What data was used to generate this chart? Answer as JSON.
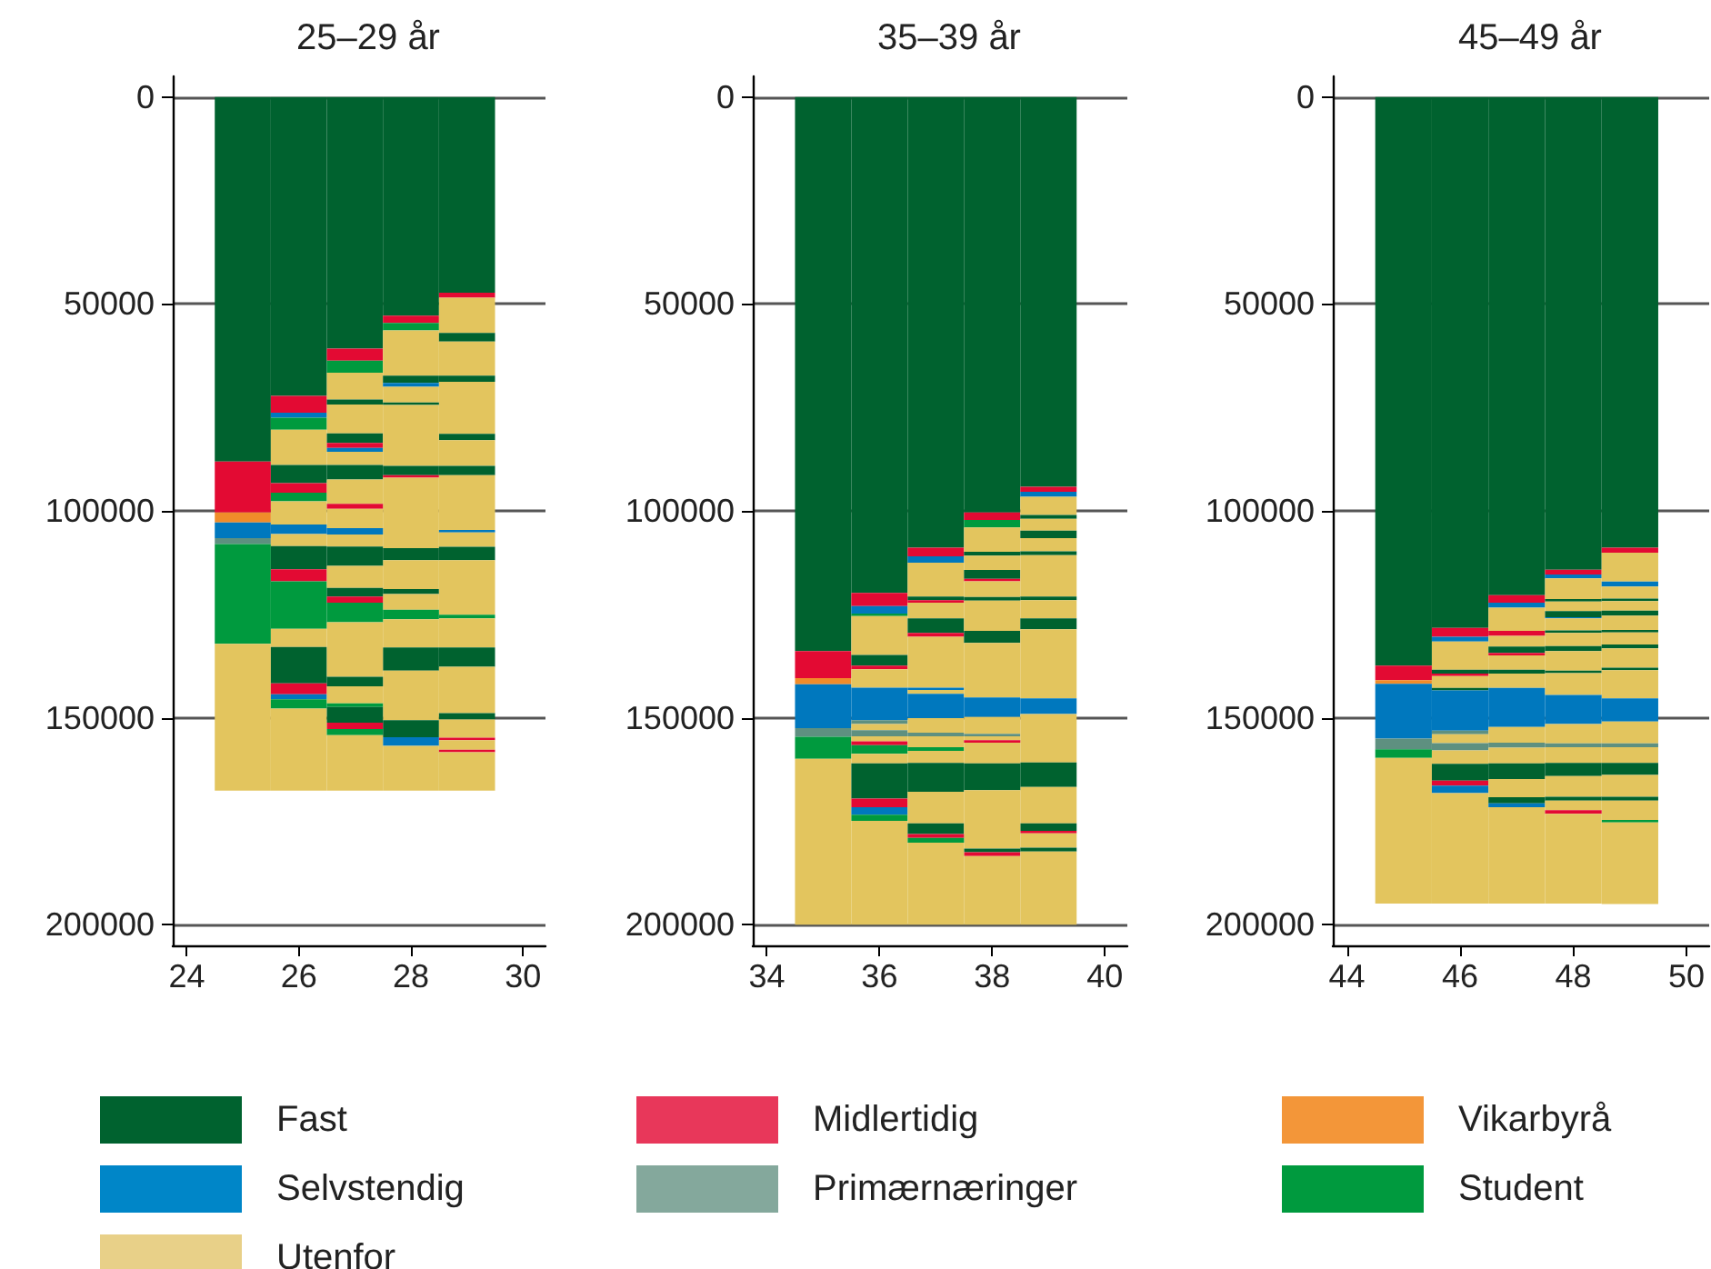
{
  "chart_data": [
    {
      "type": "bar",
      "title": "25–29 år",
      "stacked": true,
      "legend": "bottom",
      "grid": "y",
      "x": [
        25,
        26,
        27,
        28,
        29
      ],
      "xlim": [
        23.75,
        30.4
      ],
      "xticks": [
        24,
        26,
        28,
        30
      ],
      "ylim": [
        205000,
        -5000
      ],
      "yticks": [
        0,
        50000,
        100000,
        150000,
        200000
      ],
      "series": [
        {
          "colors": [
            "#00622f",
            "#00622f",
            "#00622f",
            "#00622f",
            "#00622f"
          ],
          "values": [
            88100,
            72200,
            60800,
            52800,
            47300
          ]
        },
        {
          "colors": [
            "#e30a33",
            "#e30a33",
            "#e30a33",
            "#e30a33",
            "#e30a33"
          ],
          "values": [
            12300,
            4100,
            2900,
            1800,
            1200
          ]
        },
        {
          "colors": [
            "#f08c2a",
            "#0078be",
            "#009a3e",
            "#009a3e",
            "#e3c55e"
          ],
          "values": [
            2400,
            1200,
            2900,
            1800,
            8500
          ]
        },
        {
          "colors": [
            "#0078be",
            "#009a3e",
            "#e3c55e",
            "#e3c55e",
            "#00622f"
          ],
          "values": [
            3800,
            2900,
            6500,
            10900,
            2100
          ]
        },
        {
          "colors": [
            "#5e9080",
            "#e3c55e",
            "#00622f",
            "#00622f",
            "#e3c55e"
          ],
          "values": [
            1400,
            8500,
            1200,
            1800,
            8200
          ]
        },
        {
          "colors": [
            "#009a3e",
            "#00622f",
            "#e3c55e",
            "#0078be",
            "#00622f"
          ],
          "values": [
            24100,
            4400,
            7000,
            900,
            1500
          ]
        },
        {
          "colors": [
            "#e3c55e",
            "#e30a33",
            "#00622f",
            "#e3c55e",
            "#e3c55e"
          ],
          "values": [
            35500,
            2300,
            2300,
            3800,
            12600
          ]
        },
        {
          "colors": [
            null,
            "#009a3e",
            "#e30a33",
            "#00622f",
            "#00622f"
          ],
          "values": [
            null,
            2100,
            1200,
            600,
            1500
          ]
        },
        {
          "colors": [
            null,
            "#e3c55e",
            "#0078be",
            "#e3c55e",
            "#e3c55e"
          ],
          "values": [
            null,
            5600,
            900,
            14700,
            6200
          ]
        },
        {
          "colors": [
            null,
            "#0078be",
            "#e3c55e",
            "#00622f",
            "#00622f"
          ],
          "values": [
            null,
            2300,
            3200,
            2300,
            2300
          ]
        },
        {
          "colors": [
            null,
            "#e3c55e",
            "#00622f",
            "#e30a33",
            "#e3c55e"
          ],
          "values": [
            null,
            2900,
            3500,
            600,
            13200
          ]
        },
        {
          "colors": [
            null,
            "#00622f",
            "#e3c55e",
            "#e3c55e",
            "#0078be"
          ],
          "values": [
            null,
            5600,
            5900,
            17000,
            600
          ]
        },
        {
          "colors": [
            null,
            "#e30a33",
            "#e30a33",
            "#00622f",
            "#e3c55e"
          ],
          "values": [
            null,
            2900,
            1200,
            2900,
            3500
          ]
        },
        {
          "colors": [
            null,
            "#009a3e",
            "#e3c55e",
            "#e3c55e",
            "#00622f"
          ],
          "values": [
            null,
            11500,
            4700,
            7000,
            3200
          ]
        },
        {
          "colors": [
            null,
            "#e3c55e",
            "#0078be",
            "#00622f",
            "#e3c55e"
          ],
          "values": [
            null,
            4400,
            1500,
            1200,
            13200
          ]
        },
        {
          "colors": [
            null,
            "#00622f",
            "#e3c55e",
            "#e3c55e",
            "#009a3e"
          ],
          "values": [
            null,
            8800,
            2900,
            3800,
            900
          ]
        },
        {
          "colors": [
            null,
            "#e30a33",
            "#00622f",
            "#009a3e",
            "#e3c55e"
          ],
          "values": [
            null,
            2600,
            4700,
            2300,
            7000
          ]
        },
        {
          "colors": [
            null,
            "#0078be",
            "#e3c55e",
            "#e3c55e",
            "#00622f"
          ],
          "values": [
            null,
            1200,
            5300,
            6800,
            4700
          ]
        },
        {
          "colors": [
            null,
            "#009a3e",
            "#00622f",
            "#00622f",
            "#e3c55e"
          ],
          "values": [
            null,
            2300,
            2100,
            5600,
            11200
          ]
        },
        {
          "colors": [
            null,
            "#e3c55e",
            "#e30a33",
            "#e3c55e",
            "#00622f"
          ],
          "values": [
            null,
            19800,
            1500,
            12000,
            1500
          ]
        },
        {
          "colors": [
            null,
            null,
            "#009a3e",
            "#00622f",
            "#e3c55e"
          ],
          "values": [
            null,
            null,
            4700,
            4100,
            4400
          ]
        },
        {
          "colors": [
            null,
            null,
            "#e3c55e",
            "#0078be",
            "#e30a33"
          ],
          "values": [
            null,
            null,
            13200,
            2100,
            600
          ]
        },
        {
          "colors": [
            null,
            null,
            "#00622f",
            "#e3c55e",
            "#e3c55e"
          ],
          "values": [
            null,
            null,
            2300,
            10800,
            2300
          ]
        },
        {
          "colors": [
            null,
            null,
            "#e3c55e",
            null,
            "#e30a33"
          ],
          "values": [
            null,
            null,
            4100,
            null,
            600
          ]
        },
        {
          "colors": [
            null,
            null,
            "#009a3e",
            null,
            "#e3c55e"
          ],
          "values": [
            null,
            null,
            900,
            null,
            9300
          ]
        },
        {
          "colors": [
            null,
            null,
            "#00622f",
            null,
            null
          ],
          "values": [
            null,
            null,
            3800,
            null,
            null
          ]
        },
        {
          "colors": [
            null,
            null,
            "#e30a33",
            null,
            null
          ],
          "values": [
            null,
            null,
            1500,
            null,
            null
          ]
        },
        {
          "colors": [
            null,
            null,
            "#009a3e",
            null,
            null
          ],
          "values": [
            null,
            null,
            1500,
            null,
            null
          ]
        },
        {
          "colors": [
            null,
            null,
            "#e3c55e",
            null,
            null
          ],
          "values": [
            null,
            null,
            13400,
            null,
            null
          ]
        },
        {
          "name": "Fast",
          "color": "#00622f",
          "values": [
            null,
            null,
            null,
            null,
            null
          ]
        },
        {
          "name": "Midlertidig",
          "color": "#e8375a",
          "values": [
            null,
            null,
            null,
            null,
            null
          ]
        },
        {
          "name": "Vikarbyrå",
          "color": "#f39639",
          "values": [
            null,
            null,
            null,
            null,
            null
          ]
        },
        {
          "name": "Selvstendig",
          "color": "#0086c8",
          "values": [
            null,
            null,
            null,
            null,
            null
          ]
        },
        {
          "name": "Primærnæringer",
          "color": "#84a89c",
          "values": [
            null,
            null,
            null,
            null,
            null
          ]
        },
        {
          "name": "Student",
          "color": "#009a3e",
          "values": [
            null,
            null,
            null,
            null,
            null
          ]
        },
        {
          "name": "Utenfor",
          "color": "#e8d088",
          "values": [
            null,
            null,
            null,
            null,
            null
          ]
        }
      ]
    },
    {
      "type": "bar",
      "title": "35–39 år",
      "stacked": true,
      "grid": "y",
      "x": [
        35,
        36,
        37,
        38,
        39
      ],
      "xlim": [
        33.75,
        40.4
      ],
      "xticks": [
        34,
        36,
        38,
        40
      ],
      "ylim": [
        205000,
        -5000
      ],
      "yticks": [
        0,
        50000,
        100000,
        150000,
        200000
      ],
      "series": [
        {
          "colors": [
            "#00622f",
            "#00622f",
            "#00622f",
            "#00622f",
            "#00622f"
          ],
          "values": [
            133900,
            119800,
            108900,
            100400,
            94200
          ]
        },
        {
          "colors": [
            "#e30a33",
            "#e30a33",
            "#e30a33",
            "#e30a33",
            "#e30a33"
          ],
          "values": [
            6500,
            3200,
            2100,
            1800,
            1200
          ]
        },
        {
          "colors": [
            "#f08c2a",
            "#0078be",
            "#0078be",
            "#009a3e",
            "#0078be"
          ],
          "values": [
            1500,
            1800,
            1500,
            1800,
            1200
          ]
        },
        {
          "colors": [
            "#0078be",
            "#009a3e",
            "#e3c55e",
            "#e3c55e",
            "#e3c55e"
          ],
          "values": [
            10600,
            600,
            8200,
            5900,
            4400
          ]
        },
        {
          "colors": [
            "#5e9080",
            "#e3c55e",
            "#00622f",
            "#00622f",
            "#00622f"
          ],
          "values": [
            2100,
            9400,
            900,
            900,
            900
          ]
        },
        {
          "colors": [
            "#009a3e",
            "#00622f",
            "#e30a33",
            "#e3c55e",
            "#e3c55e"
          ],
          "values": [
            5300,
            2600,
            600,
            3500,
            2900
          ]
        },
        {
          "colors": [
            "#e3c55e",
            "#e30a33",
            "#e3c55e",
            "#00622f",
            "#00622f"
          ],
          "values": [
            40100,
            900,
            3800,
            2100,
            1800
          ]
        },
        {
          "colors": [
            null,
            "#e3c55e",
            "#00622f",
            "#e30a33",
            "#e3c55e"
          ],
          "values": [
            null,
            4400,
            3500,
            600,
            3200
          ]
        },
        {
          "colors": [
            null,
            "#0078be",
            "#e30a33",
            "#e3c55e",
            "#00622f"
          ],
          "values": [
            null,
            7900,
            900,
            3800,
            900
          ]
        },
        {
          "colors": [
            null,
            "#5e9080",
            "#e3c55e",
            "#00622f",
            "#e3c55e"
          ],
          "values": [
            null,
            900,
            12300,
            900,
            10000
          ]
        },
        {
          "colors": [
            null,
            "#e3c55e",
            "#0078be",
            "#e3c55e",
            "#00622f"
          ],
          "values": [
            null,
            1500,
            600,
            7300,
            900
          ]
        },
        {
          "colors": [
            null,
            "#5e9080",
            "#e3c55e",
            "#00622f",
            "#e3c55e"
          ],
          "values": [
            null,
            1500,
            900,
            2900,
            4400
          ]
        },
        {
          "colors": [
            null,
            "#e3c55e",
            "#0078be",
            "#e3c55e",
            "#00622f"
          ],
          "values": [
            null,
            1200,
            5900,
            13200,
            2600
          ]
        },
        {
          "colors": [
            null,
            "#e30a33",
            "#e3c55e",
            "#0078be",
            "#e3c55e"
          ],
          "values": [
            null,
            900,
            3500,
            4700,
            16700
          ]
        },
        {
          "colors": [
            null,
            "#009a3e",
            "#5e9080",
            "#e3c55e",
            "#0078be"
          ],
          "values": [
            null,
            2100,
            900,
            4100,
            3800
          ]
        },
        {
          "colors": [
            null,
            "#e3c55e",
            "#e3c55e",
            "#5e9080",
            "#e3c55e"
          ],
          "values": [
            null,
            2300,
            2600,
            600,
            11700
          ]
        },
        {
          "colors": [
            null,
            "#00622f",
            "#009a3e",
            "#e3c55e",
            "#00622f"
          ],
          "values": [
            null,
            8500,
            900,
            900,
            5900
          ]
        },
        {
          "colors": [
            null,
            "#e30a33",
            "#e3c55e",
            "#e30a33",
            "#e3c55e"
          ],
          "values": [
            null,
            2100,
            2900,
            600,
            8800
          ]
        },
        {
          "colors": [
            null,
            "#0078be",
            "#00622f",
            "#e3c55e",
            "#00622f"
          ],
          "values": [
            null,
            1800,
            7000,
            5000,
            1800
          ]
        },
        {
          "colors": [
            null,
            "#009a3e",
            "#e3c55e",
            "#00622f",
            "#e30a33"
          ],
          "values": [
            null,
            1500,
            7600,
            6500,
            600
          ]
        },
        {
          "colors": [
            null,
            "#e3c55e",
            "#00622f",
            "#e3c55e",
            "#e3c55e"
          ],
          "values": [
            null,
            25100,
            2600,
            14100,
            3500
          ]
        },
        {
          "colors": [
            null,
            null,
            "#e30a33",
            "#00622f",
            "#00622f"
          ],
          "values": [
            null,
            null,
            900,
            900,
            900
          ]
        },
        {
          "colors": [
            null,
            null,
            "#009a3e",
            "#e30a33",
            "#e3c55e"
          ],
          "values": [
            null,
            null,
            1200,
            900,
            17700
          ]
        },
        {
          "colors": [
            null,
            null,
            "#e3c55e",
            "#e3c55e",
            null
          ],
          "values": [
            null,
            null,
            19800,
            16600,
            null
          ]
        }
      ]
    },
    {
      "type": "bar",
      "title": "45–49 år",
      "stacked": true,
      "grid": "y",
      "x": [
        45,
        46,
        47,
        48,
        49
      ],
      "xlim": [
        43.75,
        50.4
      ],
      "xticks": [
        44,
        46,
        48,
        50
      ],
      "ylim": [
        205000,
        -5000
      ],
      "yticks": [
        0,
        50000,
        100000,
        150000,
        200000
      ],
      "series": [
        {
          "colors": [
            "#00622f",
            "#00622f",
            "#00622f",
            "#00622f",
            "#00622f"
          ],
          "values": [
            137400,
            128300,
            120400,
            114200,
            108900
          ]
        },
        {
          "colors": [
            "#e30a33",
            "#e30a33",
            "#e30a33",
            "#e30a33",
            "#e30a33"
          ],
          "values": [
            3500,
            2100,
            1800,
            1200,
            1200
          ]
        },
        {
          "colors": [
            "#f08c2a",
            "#0078be",
            "#0078be",
            "#0078be",
            "#e3c55e"
          ],
          "values": [
            900,
            1200,
            1200,
            900,
            7000
          ]
        },
        {
          "colors": [
            "#0078be",
            "#e3c55e",
            "#e3c55e",
            "#e3c55e",
            "#0078be"
          ],
          "values": [
            13200,
            6800,
            5600,
            5000,
            1200
          ]
        },
        {
          "colors": [
            "#5e9080",
            "#00622f",
            "#e30a33",
            "#00622f",
            "#e3c55e"
          ],
          "values": [
            2600,
            900,
            1200,
            600,
            2900
          ]
        },
        {
          "colors": [
            "#009a3e",
            "#e30a33",
            "#e3c55e",
            "#e3c55e",
            "#00622f"
          ],
          "values": [
            2100,
            600,
            2600,
            2300,
            600
          ]
        },
        {
          "colors": [
            "#e3c55e",
            "#e3c55e",
            "#00622f",
            "#00622f",
            "#e3c55e"
          ],
          "values": [
            35200,
            2900,
            1500,
            1500,
            2300
          ]
        },
        {
          "colors": [
            null,
            "#00622f",
            "#e30a33",
            "#0078be",
            "#00622f"
          ],
          "values": [
            null,
            600,
            600,
            300,
            1200
          ]
        },
        {
          "colors": [
            null,
            "#0078be",
            "#e3c55e",
            "#e3c55e",
            "#e3c55e"
          ],
          "values": [
            null,
            9700,
            3500,
            2900,
            3500
          ]
        },
        {
          "colors": [
            null,
            "#5e9080",
            "#00622f",
            "#00622f",
            "#00622f"
          ],
          "values": [
            null,
            900,
            900,
            600,
            600
          ]
        },
        {
          "colors": [
            null,
            "#e3c55e",
            "#e3c55e",
            "#e3c55e",
            "#e3c55e"
          ],
          "values": [
            null,
            2100,
            3500,
            3200,
            2900
          ]
        },
        {
          "colors": [
            null,
            "#5e9080",
            "#0078be",
            "#00622f",
            "#00622f"
          ],
          "values": [
            null,
            1800,
            9400,
            1200,
            900
          ]
        },
        {
          "colors": [
            null,
            "#e3c55e",
            "#e3c55e",
            "#e3c55e",
            "#e3c55e"
          ],
          "values": [
            null,
            3200,
            3800,
            4700,
            4700
          ]
        },
        {
          "colors": [
            null,
            "#00622f",
            "#5e9080",
            "#00622f",
            "#00622f"
          ],
          "values": [
            null,
            4100,
            1200,
            600,
            600
          ]
        },
        {
          "colors": [
            null,
            "#e30a33",
            "#e3c55e",
            "#e3c55e",
            "#e3c55e"
          ],
          "values": [
            null,
            1200,
            3800,
            5300,
            6800
          ]
        },
        {
          "colors": [
            null,
            "#0078be",
            "#00622f",
            "#0078be",
            "#0078be"
          ],
          "values": [
            null,
            1800,
            3800,
            7000,
            5600
          ]
        },
        {
          "colors": [
            null,
            "#e3c55e",
            "#e3c55e",
            "#e3c55e",
            "#e3c55e"
          ],
          "values": [
            null,
            26700,
            4400,
            4700,
            5300
          ]
        },
        {
          "colors": [
            null,
            null,
            "#00622f",
            "#5e9080",
            "#5e9080"
          ],
          "values": [
            null,
            null,
            1500,
            900,
            900
          ]
        },
        {
          "colors": [
            null,
            null,
            "#0078be",
            "#e3c55e",
            "#e3c55e"
          ],
          "values": [
            null,
            null,
            900,
            3800,
            3800
          ]
        },
        {
          "colors": [
            null,
            null,
            "#e3c55e",
            "#00622f",
            "#00622f"
          ],
          "values": [
            null,
            null,
            23300,
            3200,
            2900
          ]
        },
        {
          "colors": [
            null,
            null,
            null,
            "#e3c55e",
            "#e3c55e"
          ],
          "values": [
            null,
            null,
            null,
            5000,
            5300
          ]
        },
        {
          "colors": [
            null,
            null,
            null,
            "#00622f",
            "#00622f"
          ],
          "values": [
            null,
            null,
            null,
            900,
            900
          ]
        },
        {
          "colors": [
            null,
            null,
            null,
            "#e3c55e",
            "#e3c55e"
          ],
          "values": [
            null,
            null,
            null,
            2300,
            4700
          ]
        },
        {
          "colors": [
            null,
            null,
            null,
            "#e30a33",
            "#009a3e"
          ],
          "values": [
            null,
            null,
            null,
            900,
            600
          ]
        },
        {
          "colors": [
            null,
            null,
            null,
            "#e3c55e",
            "#e3c55e"
          ],
          "values": [
            null,
            null,
            null,
            21700,
            19700
          ]
        }
      ]
    }
  ]
}
